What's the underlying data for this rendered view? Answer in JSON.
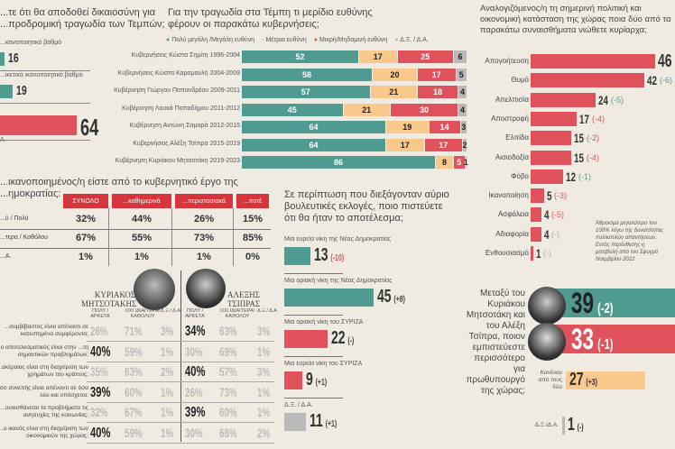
{
  "colors": {
    "teal": "#4f9b91",
    "orange": "#f8c98b",
    "red": "#e0525b",
    "gray": "#b9b9b9",
    "green_change": "#5a9a8f"
  },
  "justice": {
    "question": [
      "...τε ότι θα αποδοθεί δικαιοσύνη για",
      "...προδρομική τραγωδία των Τεμπών;"
    ],
    "items": [
      {
        "label": "...κανοποιητικό βαθμό",
        "value": 16,
        "color": "teal"
      },
      {
        "label": "...ικετικά ικανοποιητικό βαθμό",
        "value": 19,
        "color": "teal"
      },
      {
        "label": "",
        "value": 64,
        "color": "red"
      }
    ],
    "last_label": "Α."
  },
  "responsibility": {
    "question": [
      "Για την τραγωδία στα Τέμπη τι μερίδιο ευθύνης",
      "φέρουν οι παρακάτω κυβερνήσεις;"
    ],
    "legend": [
      "Πολύ μεγάλη /Μεγάλη ευθύνη",
      "Μέτρια ευθύνη",
      "Μικρή/Μηδαμινή ευθύνη",
      "Δ.Ξ. / Δ.Α."
    ]
  },
  "chart_data": [
    {
      "type": "bar",
      "stacked": true,
      "title": "Για την τραγωδία στα Τέμπη τι μερίδιο ευθύνης φέρουν οι παρακάτω κυβερνήσεις;",
      "categories": [
        "Κυβερνήσεις Κώστα Σημίτη 1996-2004",
        "Κυβερνήσεις Κώστα Καραμανλή 2004-2009",
        "Κυβέρνηση Γιώργου Παπανδρέου 2009-2011",
        "Κυβέρνηση Λουκά Παπαδήμου 2011-2012",
        "Κυβέρνηση Αντώνη Σαμαρά 2012-2015",
        "Κυβερνήσεις Αλέξη Τσίπρα 2015-2019",
        "Κυβέρνηση Κυριάκου Μητσοτάκη 2019-2023"
      ],
      "series": [
        {
          "name": "Πολύ μεγάλη /Μεγάλη ευθύνη",
          "values": [
            52,
            58,
            57,
            45,
            64,
            64,
            86
          ]
        },
        {
          "name": "Μέτρια ευθύνη",
          "values": [
            17,
            20,
            21,
            21,
            19,
            17,
            8
          ]
        },
        {
          "name": "Μικρή/Μηδαμινή ευθύνη",
          "values": [
            25,
            17,
            18,
            30,
            14,
            17,
            5
          ]
        },
        {
          "name": "Δ.Ξ. / Δ.Α.",
          "values": [
            6,
            5,
            4,
            4,
            3,
            2,
            1
          ]
        }
      ]
    },
    {
      "type": "bar",
      "title": "Αναλογιζόμενος/η τη σημερινή πολιτική και οικονομική κατάσταση της χώρας ποια δύο από τα παρακάτω συναισθήματα νιώθετε κυρίαρχα;",
      "categories": [
        "Απογοήτευση",
        "Θυμό",
        "Απελπισία",
        "Αποστροφή",
        "Ελπίδα",
        "Αισιοδοξία",
        "Φόβο",
        "Ικανοποίηση",
        "Ασφάλεια",
        "Αδιαφορία",
        "Ενθουσιασμό"
      ],
      "values": [
        46,
        42,
        24,
        17,
        15,
        15,
        12,
        5,
        4,
        4,
        1
      ],
      "changes": [
        "",
        "(-6)",
        "(-5)",
        "(-4)",
        "(-2)",
        "(-4)",
        "(-1)",
        "(-3)",
        "(-5)",
        "(-)",
        "(-)"
      ]
    }
  ],
  "emotions": {
    "question": [
      "Αναλογιζόμενος/η τη σημερινή πολιτική",
      "και οικονομική κατάσταση της χώρας ποια δύο",
      "παρακάτω συναισθήματα νιώθετε κυρίαρχα;"
    ],
    "note": [
      "Άθροισμα μεγαλύτερο του",
      "100% λόγω της δυνατότητας",
      "πολλαπλών απαντήσεων.",
      "Εντός παρένθεσης η",
      "μεταβολή από τον Σφυγμό",
      "Νοεμβρίου 2022"
    ]
  },
  "satisfaction": {
    "question": [
      "...ικανοποιημένος/η είστε από το κυβερνητικό έργο της",
      "...ημοκρατίας:"
    ],
    "headers": [
      "ΣΥΝΟΛΟ",
      "...καθημερινά",
      "...περιστασιακά",
      "...ποτέ"
    ],
    "rows": [
      {
        "label": "...ύ / Πολύ",
        "values": [
          "32%",
          "44%",
          "26%",
          "15%"
        ]
      },
      {
        "label": "...τερα / Καθόλου",
        "values": [
          "67%",
          "55%",
          "73%",
          "85%"
        ]
      },
      {
        "label": "...Α.",
        "values": [
          "1%",
          "1%",
          "1%",
          "0%"
        ]
      }
    ]
  },
  "leaders": {
    "kyriakos": "ΚΥΡΙΑΚΟΣ ΜΗΤΣΟΤΑΚΗΣ",
    "alexis": "ΑΛΕΞΗΣ ΤΣΙΠΡΑΣ",
    "col_headers": [
      "ΠΟΛΥ / ΑΡΚΕΤΑ",
      "ΟΧΙ ΙΔΙΑΙΤΕΡΑ/ ΚΑΘΟΛΟΥ",
      "Δ.Ξ./ Δ.Α"
    ],
    "rows": [
      {
        "q": "...συμβίβαστος είναι απέναντι σε κατεστημένα συμφέροντα;",
        "k": [
          "26%",
          "71%",
          "3%"
        ],
        "a": [
          "34%",
          "63%",
          "3%"
        ]
      },
      {
        "q": "...ο αποτελεσματικός είναι στην ...τη σημαντικών προβλημάτων;",
        "k": [
          "40%",
          "59%",
          "1%"
        ],
        "a": [
          "30%",
          "69%",
          "1%"
        ]
      },
      {
        "q": "...ακέραιος είναι στη διαχείριση των χρημάτων του κράτους;",
        "k": [
          "35%",
          "63%",
          "2%"
        ],
        "a": [
          "40%",
          "57%",
          "3%"
        ]
      },
      {
        "q": "...Πόσο συνεπής είναι απέναντι σε όσα λέει και υπόσχεται;",
        "k": [
          "39%",
          "60%",
          "1%"
        ],
        "a": [
          "26%",
          "73%",
          "1%"
        ]
      },
      {
        "q": "...υναισθάνεται τα προβλήματα τις ανησυχίες της κοινωνίας;",
        "k": [
          "32%",
          "67%",
          "1%"
        ],
        "a": [
          "39%",
          "60%",
          "1%"
        ]
      },
      {
        "q": "...ο ικανός είναι στη διαχείριση των οικονομικών της χώρας;",
        "k": [
          "40%",
          "59%",
          "1%"
        ],
        "a": [
          "30%",
          "68%",
          "2%"
        ]
      }
    ],
    "bold_k": [
      1,
      3,
      5
    ],
    "bold_a": [
      0,
      2,
      4
    ]
  },
  "elections": {
    "question": [
      "Σε περίπτωση που διεξάγονταν αύριο",
      "βουλευτικές εκλογές, ποιο πιστεύετε",
      "ότι θα ήταν το αποτέλεσμα;"
    ],
    "items": [
      {
        "label": "Μια ευρεία νίκη της Νέας Δημοκρατίας",
        "value": 13,
        "change": "(-10)",
        "color": "teal"
      },
      {
        "label": "Μια οριακή νίκη της Νέας Δημοκρατίας",
        "value": 45,
        "change": "(+8)",
        "color": "teal"
      },
      {
        "label": "Μια οριακή νίκη του ΣΥΡΙΖΑ",
        "value": 22,
        "change": "(-)",
        "color": "red"
      },
      {
        "label": "Μια ευρεία νίκη του ΣΥΡΙΖΑ",
        "value": 9,
        "change": "(+1)",
        "color": "red"
      },
      {
        "label": "Δ.Ξ. / Δ.Α.",
        "value": 11,
        "change": "(+1)",
        "color": "gray"
      }
    ]
  },
  "pm": {
    "question": [
      "Μεταξύ του",
      "Κυριάκου",
      "Μητσοτάκη και",
      "του Αλέξη",
      "Τσίπρα, ποιον",
      "εμπιστεύεστε",
      "περισσότερο για",
      "πρωθυπουργό",
      "της χώρας;"
    ],
    "items": [
      {
        "label": "",
        "value": 39,
        "change": "(-2)",
        "color": "teal"
      },
      {
        "label": "",
        "value": 33,
        "change": "(-1)",
        "color": "red"
      },
      {
        "label": "Κανέναν από τους δύο",
        "value": 27,
        "change": "(+3)",
        "color": "orange"
      },
      {
        "label": "Δ.Ξ./Δ.Α.",
        "value": 1,
        "change": "(-)",
        "color": "gray"
      }
    ]
  }
}
